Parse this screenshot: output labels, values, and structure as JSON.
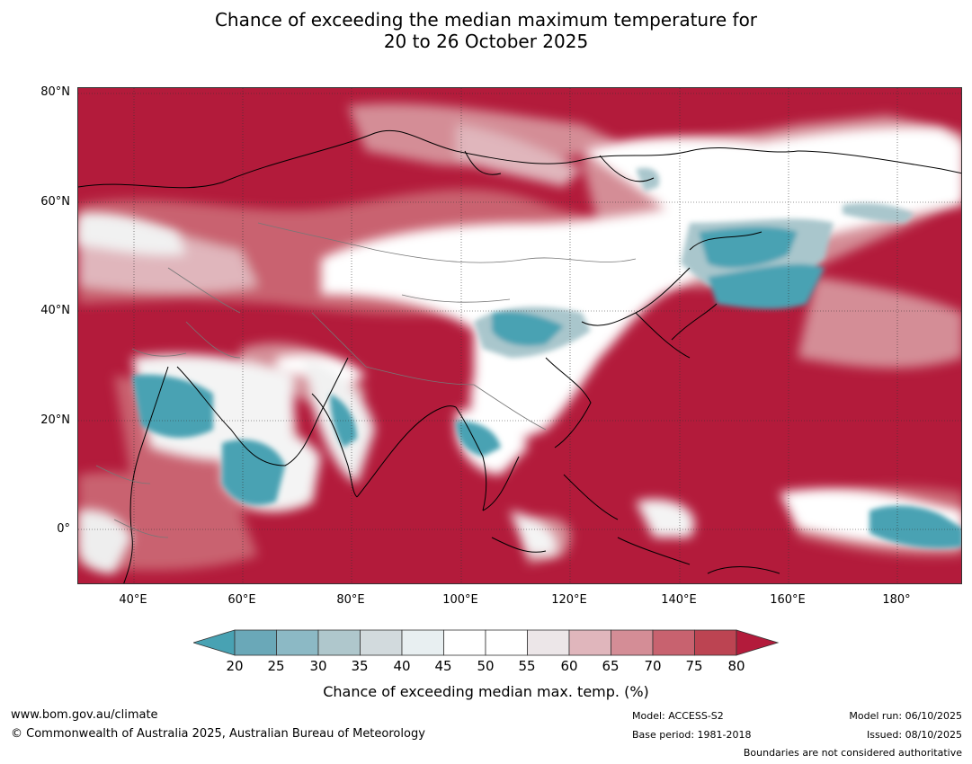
{
  "title": {
    "line1": "Chance of exceeding the median maximum temperature for",
    "line2": "20 to 26 October 2025"
  },
  "map": {
    "lat_labels": [
      "80°N",
      "60°N",
      "40°N",
      "20°N",
      "0°"
    ],
    "lon_labels": [
      "40°E",
      "60°E",
      "80°E",
      "100°E",
      "120°E",
      "140°E",
      "160°E",
      "180°"
    ],
    "colors": {
      "hot_dark": "#b31b3b",
      "hot_mid": "#c9626f",
      "hot_light": "#e0b6bc",
      "neutral": "#ffffff",
      "neutral_grey": "#e4e8ea",
      "cool_light": "#a9c6cc",
      "cool_dark": "#48a2b3"
    }
  },
  "colorbar": {
    "ticks": [
      "20",
      "25",
      "30",
      "35",
      "40",
      "45",
      "50",
      "55",
      "60",
      "65",
      "70",
      "75",
      "80"
    ],
    "colors": [
      "#6aa8b8",
      "#8cb9c5",
      "#afc7cc",
      "#d2dadd",
      "#e8eff1",
      "#ffffff",
      "#ffffff",
      "#ece6e8",
      "#e0b6bc",
      "#d48d96",
      "#c8626f",
      "#bc4452"
    ],
    "low_extend_color": "#48a2b3",
    "high_extend_color": "#b31b3b",
    "label": "Chance of exceeding median max. temp. (%)"
  },
  "footer": {
    "website": "www.bom.gov.au/climate",
    "copyright": "© Commonwealth of Australia 2025, Australian Bureau of Meteorology",
    "model": "Model: ACCESS-S2",
    "base_period": "Base period: 1981-2018",
    "model_run": "Model run: 06/10/2025",
    "issued": "Issued: 08/10/2025",
    "disclaimer": "Boundaries are not considered authoritative"
  }
}
